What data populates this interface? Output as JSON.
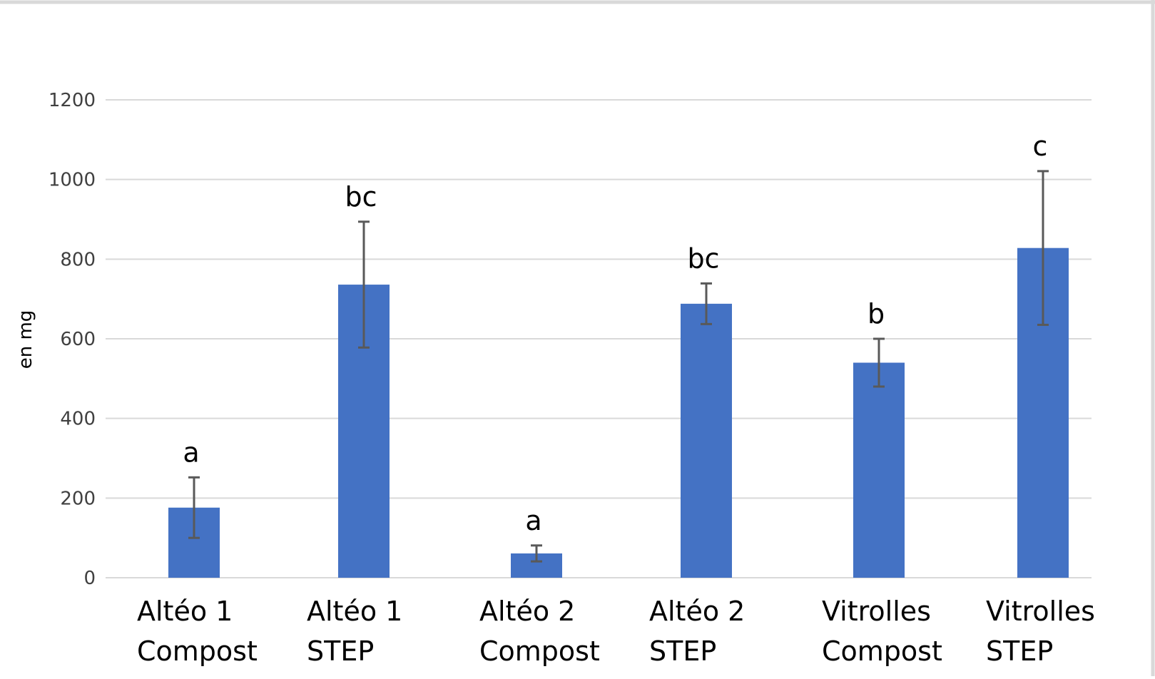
{
  "chart_data": {
    "type": "bar",
    "categories": [
      [
        "Altéo 1",
        "Compost"
      ],
      [
        "Altéo 1",
        "STEP"
      ],
      [
        "Altéo 2",
        "Compost"
      ],
      [
        "Altéo 2",
        "STEP"
      ],
      [
        "Vitrolles",
        "Compost"
      ],
      [
        "Vitrolles",
        "STEP"
      ]
    ],
    "values": [
      176,
      736,
      61,
      688,
      540,
      828
    ],
    "errors": [
      76,
      158,
      20,
      51,
      60,
      193
    ],
    "significance_labels": [
      "a",
      "bc",
      "a",
      "bc",
      "b",
      "c"
    ],
    "ylabel": "en mg",
    "ylim": [
      0,
      1200
    ],
    "yticks": [
      0,
      200,
      400,
      600,
      800,
      1000,
      1200
    ],
    "grid": true,
    "bar_color": "#4472C4",
    "grid_color": "#D9D9D9",
    "errorbar_color": "#595959"
  }
}
